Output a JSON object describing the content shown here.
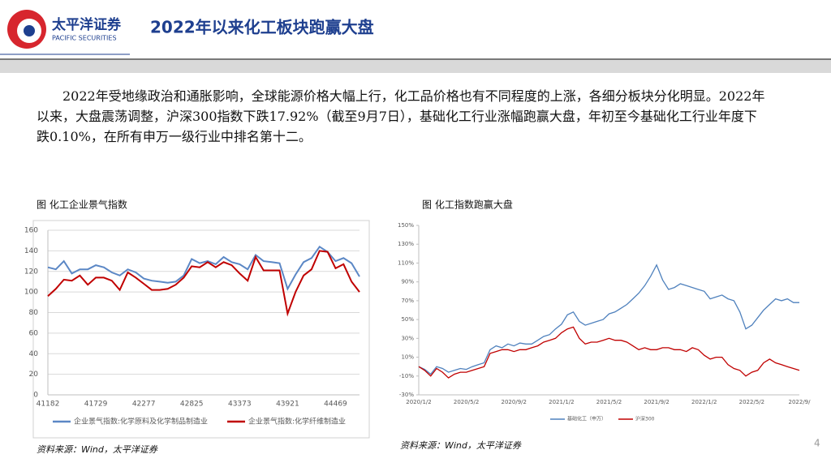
{
  "header": {
    "logo_cn": "太平洋证券",
    "logo_en": "PACIFIC SECURITIES",
    "title": "2022年以来化工板块跑赢大盘"
  },
  "body": {
    "paragraph": "2022年受地缘政治和通胀影响，全球能源价格大幅上行，化工品价格也有不同程度的上涨，各细分板块分化明显。2022年以来，大盘震荡调整，沪深300指数下跌17.92%（截至9月7日），基础化工行业涨幅跑赢大盘，年初至今基础化工行业年度下跌0.10%，在所有申万一级行业中排名第十二。"
  },
  "chart_data": [
    {
      "type": "line",
      "title": "图 化工企业景气指数",
      "source": "资料来源：Wind，太平洋证券",
      "grid": true,
      "categories": [
        "41182",
        null,
        null,
        null,
        null,
        null,
        "41729",
        null,
        null,
        null,
        null,
        null,
        "42277",
        null,
        null,
        null,
        null,
        null,
        "42825",
        null,
        null,
        null,
        null,
        null,
        "43373",
        null,
        null,
        null,
        null,
        null,
        "43921",
        null,
        null,
        null,
        null,
        null,
        "44469",
        null,
        null,
        null
      ],
      "series": [
        {
          "name": "企业景气指数:化学原料及化学制品制造业",
          "color": "#5b87c5",
          "values": [
            124,
            122,
            130,
            118,
            122,
            122,
            126,
            124,
            119,
            116,
            122,
            119,
            113,
            111,
            110,
            109,
            110,
            116,
            132,
            128,
            130,
            127,
            134,
            129,
            127,
            122,
            136,
            130,
            129,
            128,
            103,
            117,
            129,
            133,
            144,
            139,
            130,
            133,
            128,
            115
          ]
        },
        {
          "name": "企业景气指数:化学纤维制造业",
          "color": "#c00000",
          "values": [
            96,
            103,
            112,
            111,
            116,
            107,
            114,
            114,
            111,
            102,
            119,
            114,
            108,
            102,
            102,
            103,
            107,
            114,
            125,
            124,
            129,
            124,
            129,
            126,
            118,
            111,
            134,
            121,
            121,
            121,
            79,
            100,
            116,
            122,
            140,
            139,
            123,
            127,
            110,
            100
          ]
        }
      ],
      "ylim": [
        0,
        160
      ],
      "yticks": [
        0,
        20,
        40,
        60,
        80,
        100,
        120,
        140,
        160
      ]
    },
    {
      "type": "line",
      "title": "图 化工指数跑赢大盘",
      "source": "资料来源：Wind，太平洋证券",
      "grid": false,
      "categories": [
        "2020/1/2",
        null,
        null,
        null,
        null,
        null,
        null,
        null,
        "2020/5/2",
        null,
        null,
        null,
        null,
        null,
        null,
        null,
        "2020/9/2",
        null,
        null,
        null,
        null,
        null,
        null,
        null,
        "2021/1/2",
        null,
        null,
        null,
        null,
        null,
        null,
        null,
        "2021/5/2",
        null,
        null,
        null,
        null,
        null,
        null,
        null,
        "2021/9/2",
        null,
        null,
        null,
        null,
        null,
        null,
        null,
        "2022/1/2",
        null,
        null,
        null,
        null,
        null,
        null,
        null,
        "2022/5/2",
        null,
        null,
        null,
        null,
        null,
        null,
        null,
        "2022/9/"
      ],
      "series": [
        {
          "name": "基础化工（申万）",
          "color": "#4f81bd",
          "values": [
            0,
            -3,
            -8,
            0,
            -2,
            -6,
            -4,
            -2,
            -3,
            0,
            2,
            4,
            18,
            22,
            20,
            24,
            22,
            25,
            24,
            24,
            28,
            32,
            34,
            40,
            45,
            55,
            58,
            48,
            44,
            46,
            48,
            50,
            56,
            58,
            62,
            66,
            72,
            78,
            86,
            96,
            108,
            92,
            82,
            84,
            88,
            86,
            84,
            82,
            80,
            72,
            74,
            76,
            72,
            70,
            58,
            40,
            44,
            52,
            60,
            66,
            72,
            70,
            72,
            68,
            68
          ]
        },
        {
          "name": "沪深300",
          "color": "#c00000",
          "values": [
            0,
            -4,
            -10,
            -2,
            -6,
            -12,
            -8,
            -6,
            -6,
            -4,
            -2,
            0,
            14,
            16,
            18,
            18,
            16,
            18,
            18,
            20,
            22,
            26,
            28,
            30,
            36,
            40,
            42,
            30,
            24,
            26,
            26,
            28,
            30,
            28,
            28,
            26,
            22,
            18,
            20,
            18,
            18,
            20,
            20,
            18,
            18,
            16,
            20,
            18,
            12,
            8,
            10,
            10,
            2,
            -2,
            -4,
            -10,
            -6,
            -4,
            4,
            8,
            4,
            2,
            0,
            -2,
            -4
          ]
        }
      ],
      "ylim": [
        -30,
        150
      ],
      "yticks": [
        {
          "value": -30,
          "label": "-30%"
        },
        {
          "value": -10,
          "label": "-10%"
        },
        {
          "value": 10,
          "label": "10%"
        },
        {
          "value": 30,
          "label": "30%"
        },
        {
          "value": 50,
          "label": "50%"
        },
        {
          "value": 70,
          "label": "70%"
        },
        {
          "value": 90,
          "label": "90%"
        },
        {
          "value": 110,
          "label": "110%"
        },
        {
          "value": 130,
          "label": "130%"
        },
        {
          "value": 150,
          "label": "150%"
        }
      ]
    }
  ],
  "footer": {
    "page": "4"
  }
}
